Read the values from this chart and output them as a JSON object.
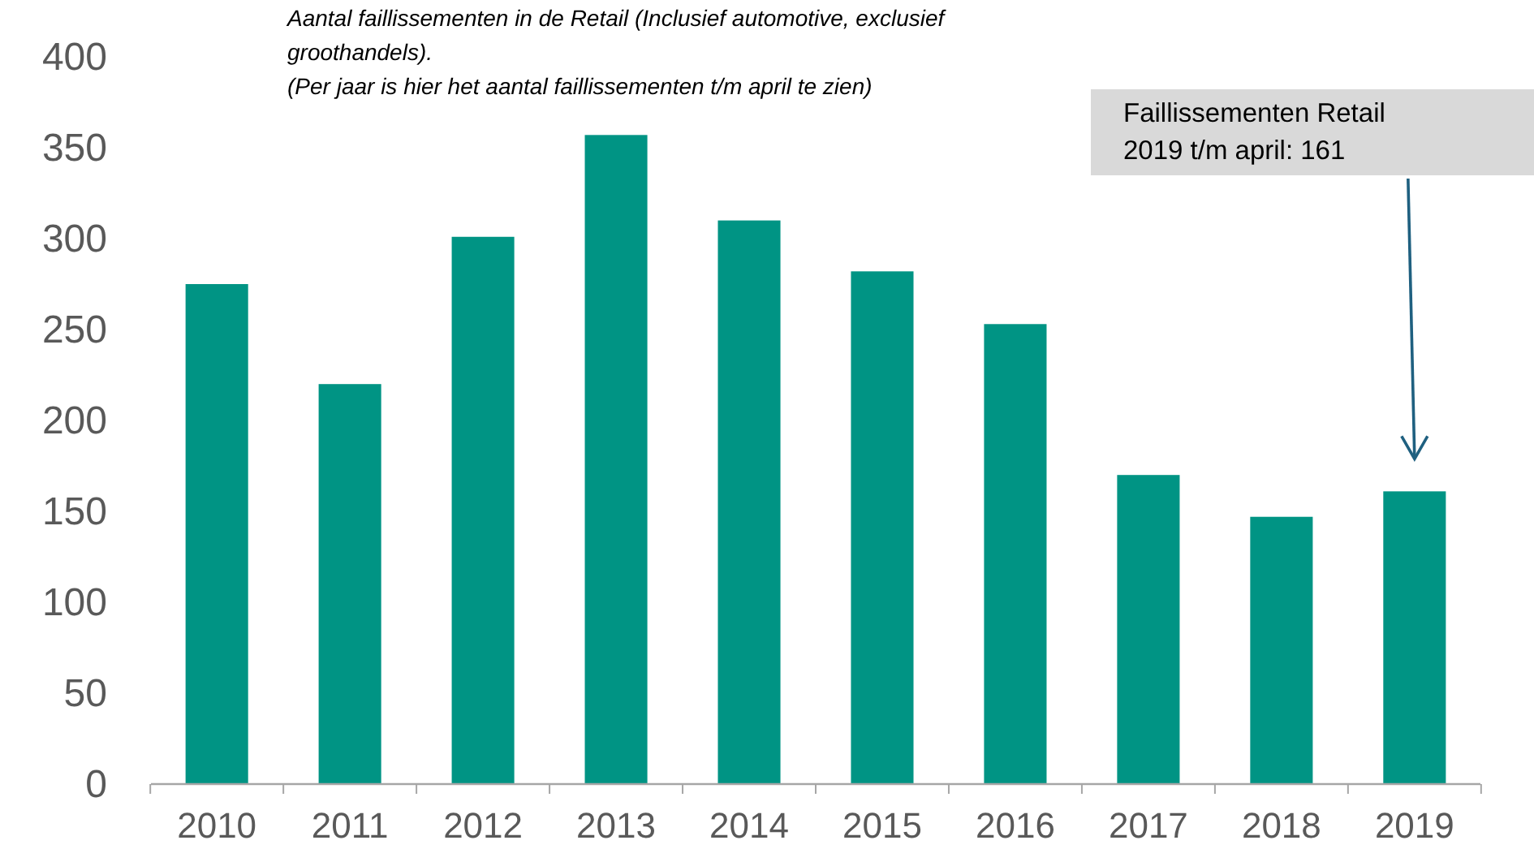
{
  "chart_data": {
    "type": "bar",
    "title": "Aantal faillissementen in de Retail (Inclusief automotive, exclusief groothandels).",
    "subtitle": "(Per jaar is hier het aantal faillissementen t/m april te zien)",
    "categories": [
      "2010",
      "2011",
      "2012",
      "2013",
      "2014",
      "2015",
      "2016",
      "2017",
      "2018",
      "2019"
    ],
    "values": [
      275,
      220,
      301,
      357,
      310,
      282,
      253,
      170,
      147,
      161
    ],
    "color": "#009484",
    "ylim": [
      0,
      400
    ],
    "yticks": [
      0,
      50,
      100,
      150,
      200,
      250,
      300,
      350,
      400
    ],
    "grid": false,
    "annotations": [
      "Faillissementen Retail 2019 t/m april: 161"
    ]
  }
}
